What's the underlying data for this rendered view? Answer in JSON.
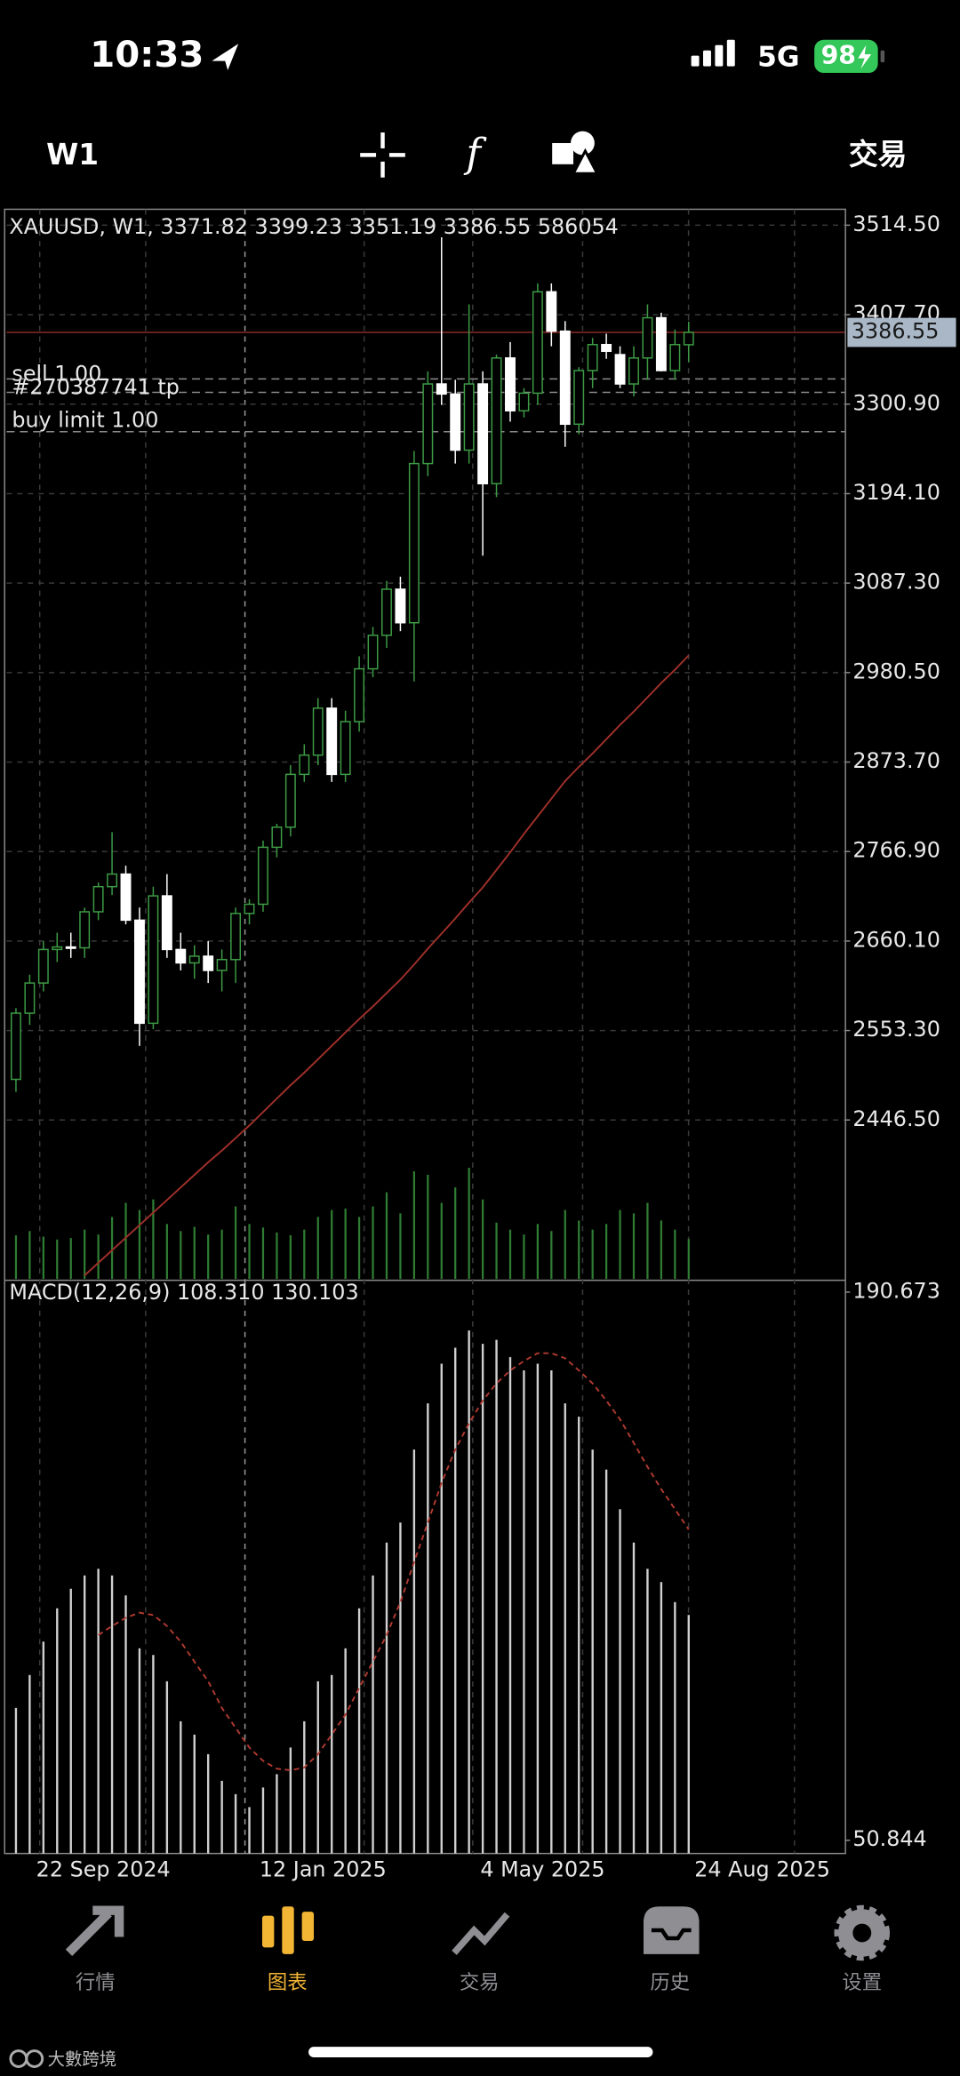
{
  "status_bar": {
    "time": "10:33",
    "network": "5G",
    "battery": "98"
  },
  "toolbar": {
    "period": "W1",
    "trade": "交易"
  },
  "chart_data": {
    "type": "candlestick",
    "title": "XAUUSD, W1, 3371.82 3399.23 3351.19 3386.55 586054",
    "xlim": [
      -0.68,
      60.37
    ],
    "xticks": [
      {
        "value": 8,
        "label": "22 Sep 2024"
      },
      {
        "value": 24,
        "label": "12 Jan 2025"
      },
      {
        "value": 40,
        "label": "4 May 2025"
      },
      {
        "value": 56,
        "label": "24 Aug 2025"
      }
    ],
    "ylim": [
      2255.2,
      3533.5
    ],
    "yticks": [
      {
        "value": 3514.5,
        "label": "3514.50"
      },
      {
        "value": 3407.7,
        "label": "3407.70"
      },
      {
        "value": 3300.9,
        "label": "3300.90"
      },
      {
        "value": 3194.1,
        "label": "3194.10"
      },
      {
        "value": 3087.3,
        "label": "3087.30"
      },
      {
        "value": 2980.5,
        "label": "2980.50"
      },
      {
        "value": 2873.7,
        "label": "2873.70"
      },
      {
        "value": 2766.9,
        "label": "2766.90"
      },
      {
        "value": 2660.1,
        "label": "2660.10"
      },
      {
        "value": 2553.3,
        "label": "2553.30"
      },
      {
        "value": 2446.5,
        "label": "2446.50"
      }
    ],
    "grid": true,
    "up_color": "#3d9b45",
    "down_color": "#ffffff",
    "open": [
      2495,
      2574,
      2610,
      2650,
      2653,
      2652,
      2695,
      2725,
      2740,
      2685,
      2562,
      2714,
      2650,
      2634,
      2642,
      2625,
      2638,
      2693,
      2704,
      2772,
      2796,
      2859,
      2882,
      2938,
      2859,
      2922,
      2985,
      3025,
      3080,
      3040,
      3230,
      3325,
      3313,
      3246,
      3325,
      3206,
      3356,
      3293,
      3314,
      3435,
      3388,
      3277,
      3341,
      3372,
      3360,
      3325,
      3356,
      3404,
      3341,
      3371.82
    ],
    "high": [
      2580,
      2620,
      2660,
      2670,
      2670,
      2700,
      2730,
      2790,
      2750,
      2700,
      2725,
      2740,
      2670,
      2655,
      2660,
      2650,
      2700,
      2710,
      2780,
      2800,
      2870,
      2895,
      2950,
      2950,
      2935,
      3000,
      3035,
      3090,
      3095,
      3245,
      3340,
      3500,
      3330,
      3420,
      3340,
      3360,
      3375,
      3320,
      3445,
      3445,
      3400,
      3345,
      3380,
      3385,
      3370,
      3370,
      3420,
      3410,
      3390,
      3399.23
    ],
    "low": [
      2480,
      2560,
      2600,
      2635,
      2640,
      2640,
      2685,
      2715,
      2680,
      2535,
      2555,
      2640,
      2625,
      2615,
      2610,
      2600,
      2610,
      2680,
      2695,
      2760,
      2785,
      2850,
      2870,
      2850,
      2850,
      2910,
      2975,
      3010,
      3030,
      2970,
      3215,
      3300,
      3230,
      3230,
      3120,
      3190,
      3280,
      3285,
      3300,
      3370,
      3250,
      3265,
      3320,
      3355,
      3320,
      3310,
      3330,
      3340,
      3330,
      3351.19
    ],
    "close": [
      2574,
      2610,
      2650,
      2653,
      2652,
      2695,
      2725,
      2740,
      2685,
      2562,
      2714,
      2650,
      2634,
      2642,
      2625,
      2638,
      2693,
      2704,
      2772,
      2796,
      2859,
      2882,
      2938,
      2859,
      2922,
      2985,
      3025,
      3080,
      3040,
      3230,
      3325,
      3313,
      3246,
      3325,
      3206,
      3356,
      3293,
      3314,
      3435,
      3388,
      3277,
      3341,
      3372,
      3364,
      3325,
      3356,
      3404,
      3341,
      3372,
      3386.55
    ],
    "volume": [
      640000,
      700000,
      620000,
      580000,
      600000,
      720000,
      650000,
      900000,
      1100000,
      1000000,
      1150000,
      800000,
      700000,
      760000,
      650000,
      720000,
      1050000,
      800000,
      750000,
      680000,
      640000,
      720000,
      900000,
      1000000,
      1020000,
      900000,
      1050000,
      1250000,
      950000,
      1550000,
      1500000,
      1100000,
      1320000,
      1600000,
      1150000,
      820000,
      720000,
      650000,
      800000,
      700000,
      1000000,
      850000,
      720000,
      800000,
      1000000,
      950000,
      1100000,
      850000,
      720000,
      586054
    ],
    "ma": [
      null,
      null,
      null,
      null,
      null,
      2261,
      2276,
      2291,
      2306,
      2321,
      2336,
      2351,
      2366,
      2381,
      2396,
      2410,
      2425,
      2440,
      2456,
      2472,
      2488,
      2503,
      2519,
      2535,
      2551,
      2567,
      2582,
      2598,
      2614,
      2632,
      2651,
      2669,
      2687,
      2706,
      2724,
      2745,
      2766,
      2788,
      2809,
      2830,
      2851,
      2868,
      2884,
      2901,
      2918,
      2934,
      2951,
      2968,
      2984,
      3001
    ],
    "ma_color": "#a0302a",
    "orders": [
      {
        "label": "sell 1.00",
        "price": 3331
      },
      {
        "label": "#270387741 tp",
        "price": 3315
      },
      {
        "label": "buy limit 1.00",
        "price": 3268
      }
    ],
    "macd": {
      "title": "MACD(12,26,9) 108.310 130.103",
      "ylim": [
        47.47,
        193.7
      ],
      "yticks": [
        190.673,
        50.844
      ],
      "color": "#d0d0d0",
      "signal_color": "#b03a30",
      "values": [
        84.6,
        93.0,
        101.5,
        110.0,
        115.0,
        118.4,
        120.1,
        118.4,
        113.3,
        99.8,
        98.1,
        91.4,
        81.2,
        77.8,
        72.8,
        66.0,
        62.6,
        59.3,
        64.3,
        67.7,
        74.5,
        81.2,
        91.4,
        93.0,
        99.8,
        110.0,
        118.4,
        126.8,
        131.9,
        150.5,
        162.3,
        172.4,
        176.5,
        180.9,
        177.5,
        178.5,
        174.1,
        170.7,
        172.4,
        170.7,
        162.3,
        158.9,
        150.5,
        145.4,
        135.3,
        126.8,
        120.1,
        116.7,
        111.6,
        108.31
      ],
      "signal": [
        null,
        null,
        null,
        null,
        null,
        null,
        103.2,
        105.5,
        107.6,
        108.9,
        108.3,
        105.5,
        101.5,
        96.4,
        91.4,
        84.6,
        79.5,
        74.5,
        71.1,
        69.1,
        68.7,
        69.4,
        72.8,
        77.8,
        82.9,
        89.7,
        96.4,
        103.2,
        111.6,
        121.8,
        131.9,
        142.0,
        150.5,
        157.2,
        163.0,
        167.4,
        170.7,
        173.1,
        175.1,
        175.1,
        173.8,
        170.7,
        167.4,
        163.0,
        158.2,
        152.2,
        146.1,
        140.4,
        135.3,
        130.103
      ]
    }
  },
  "tabs": [
    "行情",
    "图表",
    "交易",
    "历史",
    "设置"
  ],
  "watermark": "大數跨境"
}
